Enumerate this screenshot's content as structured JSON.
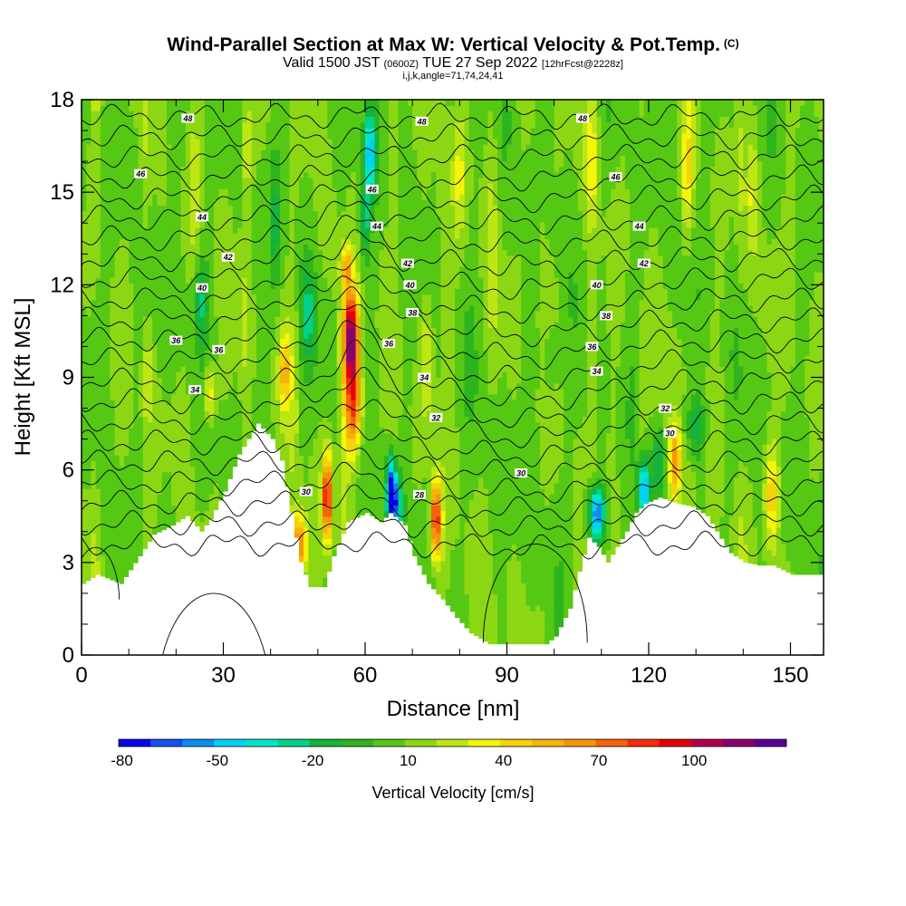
{
  "title": {
    "main": "Wind-Parallel Section at Max W: Vertical Velocity & Pot.Temp.",
    "main_suffix": "(C)",
    "line2_a": "Valid 1500 JST",
    "line2_b": "(0600Z)",
    "line2_c": "TUE 27 Sep 2022",
    "line2_d": "[12hrFcst@2228z]",
    "line3": "i,j,k,angle=71,74,24,41"
  },
  "chart_data": {
    "type": "heatmap",
    "xlabel": "Distance [nm]",
    "ylabel": "Height [Kft MSL]",
    "xlim": [
      0,
      157
    ],
    "ylim": [
      0,
      18
    ],
    "x_ticks": [
      0,
      30,
      60,
      90,
      120,
      150
    ],
    "y_ticks": [
      0,
      3,
      6,
      9,
      12,
      15,
      18
    ],
    "grid": false,
    "colorbar": {
      "label": "Vertical Velocity [cm/s]",
      "tick_labels": [
        "-80",
        "-50",
        "-20",
        "10",
        "40",
        "70",
        "100"
      ],
      "levels": [
        -80,
        -70,
        -60,
        -50,
        -40,
        -30,
        -20,
        -10,
        0,
        10,
        20,
        30,
        40,
        50,
        60,
        70,
        80,
        90,
        100,
        110,
        120
      ],
      "colors": [
        "#0a00f0",
        "#1650f0",
        "#0a8cf0",
        "#00d2f5",
        "#00e6c8",
        "#00d28c",
        "#14b43c",
        "#2db41e",
        "#55c814",
        "#8cd714",
        "#bee614",
        "#f5f50a",
        "#f5d20a",
        "#f5b40a",
        "#f5960a",
        "#f5640a",
        "#f52d0a",
        "#e6000a",
        "#b4004b",
        "#8c006e",
        "#5a0096"
      ]
    },
    "terrain": [
      [
        0,
        2.3
      ],
      [
        3,
        2.6
      ],
      [
        8,
        2.3
      ],
      [
        12,
        3.2
      ],
      [
        15,
        3.9
      ],
      [
        19,
        4.2
      ],
      [
        22,
        4.5
      ],
      [
        25,
        4.0
      ],
      [
        27,
        4.4
      ],
      [
        30,
        5.3
      ],
      [
        33,
        6.5
      ],
      [
        37,
        7.5
      ],
      [
        40,
        7.0
      ],
      [
        42,
        6.3
      ],
      [
        44,
        4.6
      ],
      [
        46,
        3.0
      ],
      [
        48,
        2.2
      ],
      [
        51,
        2.2
      ],
      [
        53,
        3.2
      ],
      [
        56,
        4.3
      ],
      [
        60,
        4.6
      ],
      [
        63,
        4.3
      ],
      [
        65,
        4.6
      ],
      [
        68,
        4.2
      ],
      [
        70,
        3.2
      ],
      [
        73,
        2.3
      ],
      [
        76,
        1.8
      ],
      [
        79,
        1.2
      ],
      [
        82,
        0.7
      ],
      [
        86,
        0.35
      ],
      [
        92,
        0.35
      ],
      [
        98,
        0.35
      ],
      [
        100,
        0.6
      ],
      [
        103,
        1.5
      ],
      [
        105,
        2.7
      ],
      [
        107,
        3.8
      ],
      [
        109,
        3.5
      ],
      [
        111,
        3.0
      ],
      [
        113,
        3.5
      ],
      [
        115,
        4.0
      ],
      [
        117,
        4.6
      ],
      [
        119,
        4.9
      ],
      [
        122,
        5.1
      ],
      [
        126,
        4.9
      ],
      [
        129,
        4.8
      ],
      [
        132,
        4.5
      ],
      [
        134,
        4.0
      ],
      [
        137,
        3.3
      ],
      [
        140,
        3.0
      ],
      [
        143,
        2.9
      ],
      [
        146,
        2.9
      ],
      [
        150,
        2.6
      ],
      [
        154,
        2.6
      ],
      [
        157,
        2.6
      ]
    ],
    "updrafts": [
      [
        57,
        10.3,
        1.7,
        1.5,
        110
      ],
      [
        57.5,
        8.0,
        1.8,
        1.5,
        70
      ],
      [
        56,
        12.6,
        1.2,
        0.7,
        45
      ],
      [
        52,
        5.1,
        1.0,
        1.4,
        90
      ],
      [
        46,
        3.6,
        1.6,
        1.0,
        65
      ],
      [
        75,
        4.4,
        1.1,
        1.3,
        85
      ],
      [
        125.5,
        6.2,
        1.4,
        1.3,
        55
      ],
      [
        146,
        5.2,
        1.6,
        1.7,
        40
      ],
      [
        43,
        9.2,
        1.2,
        1.2,
        40
      ],
      [
        27,
        8.5,
        1.2,
        1.0,
        35
      ],
      [
        14,
        9.0,
        1.2,
        1.8,
        22
      ],
      [
        73,
        9.5,
        1.5,
        2.0,
        25
      ],
      [
        35,
        16.5,
        1.2,
        1.5,
        25
      ],
      [
        108,
        16.0,
        1.3,
        2.0,
        25
      ],
      [
        128,
        15.5,
        1.2,
        2.0,
        28
      ],
      [
        142,
        15.0,
        1.1,
        2.0,
        20
      ],
      [
        80,
        15.5,
        1.5,
        2.0,
        20
      ]
    ],
    "downdrafts": [
      [
        65.5,
        5.3,
        1.0,
        1.2,
        80
      ],
      [
        66.5,
        4.9,
        1.3,
        0.9,
        55
      ],
      [
        109,
        4.6,
        1.8,
        0.9,
        72
      ],
      [
        119,
        5.3,
        1.2,
        1.1,
        72
      ],
      [
        122,
        6.3,
        1.2,
        1.0,
        30
      ],
      [
        61,
        16.3,
        1.3,
        1.5,
        55
      ],
      [
        60,
        14.0,
        1.0,
        1.2,
        30
      ],
      [
        25,
        11.5,
        1.6,
        1.4,
        28
      ],
      [
        48,
        11.0,
        1.6,
        1.4,
        25
      ],
      [
        99,
        9.5,
        2.0,
        1.2,
        18
      ],
      [
        130,
        7.4,
        2.0,
        1.0,
        28
      ],
      [
        41,
        14.0,
        1.0,
        2.0,
        20
      ]
    ],
    "theta_contour_labels": [
      {
        "x": 22.5,
        "y": 17.4,
        "text": "48"
      },
      {
        "x": 72,
        "y": 17.3,
        "text": "48"
      },
      {
        "x": 106,
        "y": 17.4,
        "text": "48"
      },
      {
        "x": 12.5,
        "y": 15.6,
        "text": "46"
      },
      {
        "x": 61.5,
        "y": 15.1,
        "text": "46"
      },
      {
        "x": 113,
        "y": 15.5,
        "text": "46"
      },
      {
        "x": 25.5,
        "y": 14.2,
        "text": "44"
      },
      {
        "x": 62.5,
        "y": 13.9,
        "text": "44"
      },
      {
        "x": 118,
        "y": 13.9,
        "text": "44"
      },
      {
        "x": 31,
        "y": 12.9,
        "text": "42"
      },
      {
        "x": 69,
        "y": 12.7,
        "text": "42"
      },
      {
        "x": 119,
        "y": 12.7,
        "text": "42"
      },
      {
        "x": 25.5,
        "y": 11.9,
        "text": "40"
      },
      {
        "x": 69.5,
        "y": 12.0,
        "text": "40"
      },
      {
        "x": 109,
        "y": 12.0,
        "text": "40"
      },
      {
        "x": 70,
        "y": 11.1,
        "text": "38"
      },
      {
        "x": 111,
        "y": 11.0,
        "text": "38"
      },
      {
        "x": 20,
        "y": 10.2,
        "text": "36"
      },
      {
        "x": 29,
        "y": 9.9,
        "text": "36"
      },
      {
        "x": 65,
        "y": 10.1,
        "text": "36"
      },
      {
        "x": 108,
        "y": 10.0,
        "text": "36"
      },
      {
        "x": 24,
        "y": 8.6,
        "text": "34"
      },
      {
        "x": 72.5,
        "y": 9.0,
        "text": "34"
      },
      {
        "x": 109,
        "y": 9.2,
        "text": "34"
      },
      {
        "x": 75,
        "y": 7.7,
        "text": "32"
      },
      {
        "x": 123.5,
        "y": 8.0,
        "text": "32"
      },
      {
        "x": 124.5,
        "y": 7.2,
        "text": "30"
      },
      {
        "x": 93,
        "y": 5.9,
        "text": "30"
      },
      {
        "x": 47.5,
        "y": 5.3,
        "text": "30"
      },
      {
        "x": 71.5,
        "y": 5.2,
        "text": "28"
      }
    ]
  }
}
